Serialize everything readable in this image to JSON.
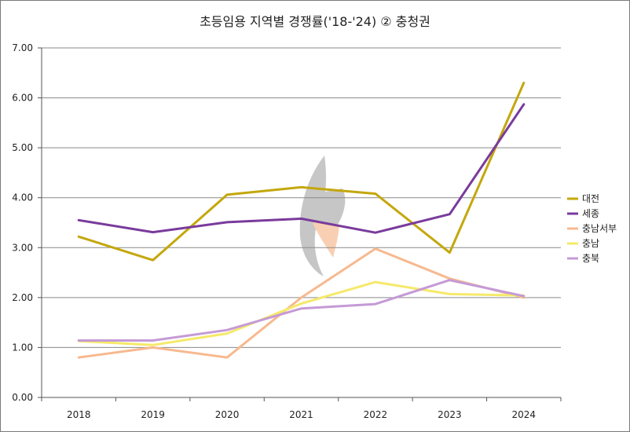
{
  "chart_data": {
    "type": "line",
    "title": "초등임용 지역별 경쟁률('18-'24) ② 충청권",
    "xlabel": "",
    "ylabel": "",
    "x": [
      "2018",
      "2019",
      "2020",
      "2021",
      "2022",
      "2023",
      "2024"
    ],
    "ylim": [
      0,
      7
    ],
    "yticks": [
      "0.00",
      "1.00",
      "2.00",
      "3.00",
      "4.00",
      "5.00",
      "6.00",
      "7.00"
    ],
    "grid": true,
    "legend_position": "right",
    "series": [
      {
        "name": "대전",
        "color": "#c4a70c",
        "values": [
          3.22,
          2.75,
          4.06,
          4.21,
          4.08,
          2.9,
          6.3
        ]
      },
      {
        "name": "세종",
        "color": "#7a3b9c",
        "values": [
          3.55,
          3.31,
          3.51,
          3.58,
          3.3,
          3.67,
          5.87
        ]
      },
      {
        "name": "충남서부",
        "color": "#f7b98f",
        "values": [
          0.8,
          1.0,
          0.8,
          2.0,
          2.98,
          2.38,
          2.0
        ]
      },
      {
        "name": "충남",
        "color": "#f5e96a",
        "values": [
          1.13,
          1.05,
          1.28,
          1.88,
          2.31,
          2.07,
          2.04
        ]
      },
      {
        "name": "충북",
        "color": "#c59ad6",
        "values": [
          1.14,
          1.14,
          1.35,
          1.78,
          1.87,
          2.35,
          2.03
        ]
      }
    ]
  }
}
